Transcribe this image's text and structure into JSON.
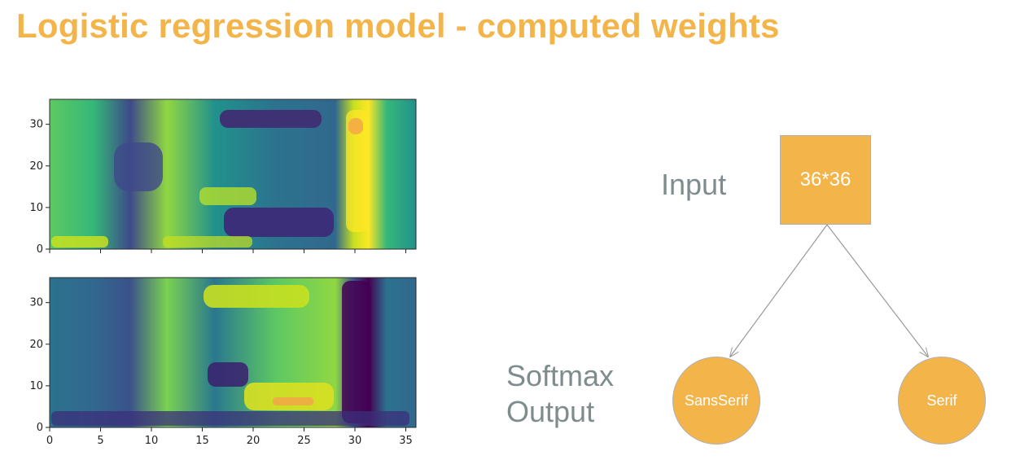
{
  "title": "Logistic regression model - computed weights",
  "colors": {
    "title": "#f3b44a",
    "node_fill": "#f3b44a",
    "label_text": "#7f8c8d",
    "colormap": "viridis"
  },
  "chart_data": [
    {
      "type": "heatmap",
      "title": "",
      "xlabel": "",
      "ylabel": "",
      "xlim": [
        0,
        36
      ],
      "ylim": [
        0,
        36
      ],
      "xticks_labels": [],
      "yticks_labels": [
        "0",
        "10",
        "20",
        "30"
      ],
      "colormap": "viridis",
      "grid": false,
      "shared_x": true
    },
    {
      "type": "heatmap",
      "title": "",
      "xlabel": "",
      "ylabel": "",
      "xlim": [
        0,
        36
      ],
      "ylim": [
        0,
        36
      ],
      "xticks_labels": [
        "0",
        "5",
        "10",
        "15",
        "20",
        "25",
        "30",
        "35"
      ],
      "yticks_labels": [
        "0",
        "10",
        "20",
        "30"
      ],
      "colormap": "viridis",
      "grid": false,
      "shared_x": true
    }
  ],
  "diagram": {
    "input_label": "Input",
    "input_node": "36*36",
    "output_label_line1": "Softmax",
    "output_label_line2": "Output",
    "outputs": [
      "SansSerif",
      "Serif"
    ]
  }
}
